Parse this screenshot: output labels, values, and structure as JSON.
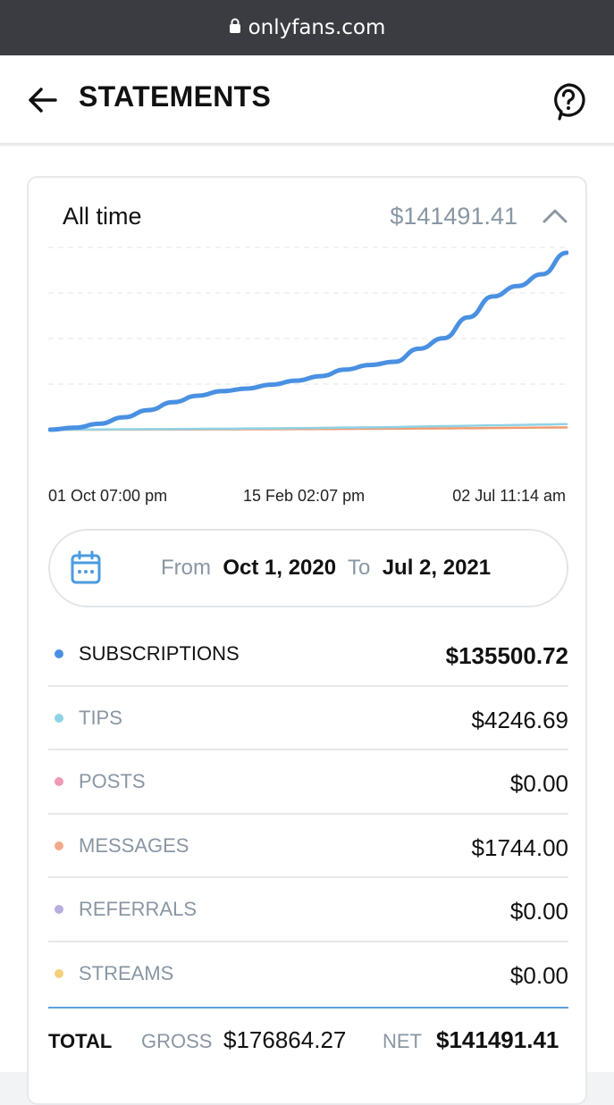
{
  "browser": {
    "url": "onlyfans.com"
  },
  "header": {
    "title": "STATEMENTS"
  },
  "card": {
    "period": "All time",
    "period_total": "$141491.41"
  },
  "chart_data": {
    "type": "line",
    "title": "",
    "x_tick_labels": [
      "01 Oct 07:00 pm",
      "15 Feb 02:07 pm",
      "02 Jul 11:14 am"
    ],
    "grid": true,
    "series": [
      {
        "color": "#4a90e2",
        "values": [
          0,
          1500,
          4500,
          9500,
          15000,
          21000,
          26000,
          29500,
          31500,
          34500,
          37500,
          41000,
          46000,
          49500,
          52000,
          62000,
          70000,
          86000,
          102000,
          110000,
          119000,
          135500
        ]
      },
      {
        "color": "#8fd3e6",
        "values": [
          0,
          100,
          200,
          300,
          400,
          500,
          600,
          700,
          900,
          1000,
          1200,
          1400,
          1600,
          1800,
          2000,
          2400,
          2700,
          3000,
          3300,
          3600,
          3900,
          4247
        ]
      },
      {
        "color": "#f29a6e",
        "values": [
          0,
          20,
          40,
          80,
          120,
          160,
          200,
          260,
          320,
          380,
          440,
          500,
          600,
          700,
          800,
          900,
          1000,
          1150,
          1300,
          1450,
          1600,
          1744
        ]
      }
    ]
  },
  "daterange": {
    "from_label": "From",
    "from": "Oct 1, 2020",
    "to_label": "To",
    "to": "Jul 2, 2021"
  },
  "rows": [
    {
      "label": "SUBSCRIPTIONS",
      "value": "$135500.72",
      "color": "#4a90e2"
    },
    {
      "label": "TIPS",
      "value": "$4246.69",
      "color": "#8fd3e6"
    },
    {
      "label": "POSTS",
      "value": "$0.00",
      "color": "#ee9ab5"
    },
    {
      "label": "MESSAGES",
      "value": "$1744.00",
      "color": "#f4a98b"
    },
    {
      "label": "REFERRALS",
      "value": "$0.00",
      "color": "#b8aee0"
    },
    {
      "label": "STREAMS",
      "value": "$0.00",
      "color": "#f6cf7c"
    }
  ],
  "total": {
    "label": "TOTAL",
    "gross_label": "GROSS",
    "gross": "$176864.27",
    "net_label": "NET",
    "net": "$141491.41"
  },
  "icons": {
    "lock": "lock-icon",
    "back": "arrow-left-icon",
    "help": "help-circle-icon",
    "collapse": "chevron-up-icon",
    "calendar": "calendar-icon"
  }
}
